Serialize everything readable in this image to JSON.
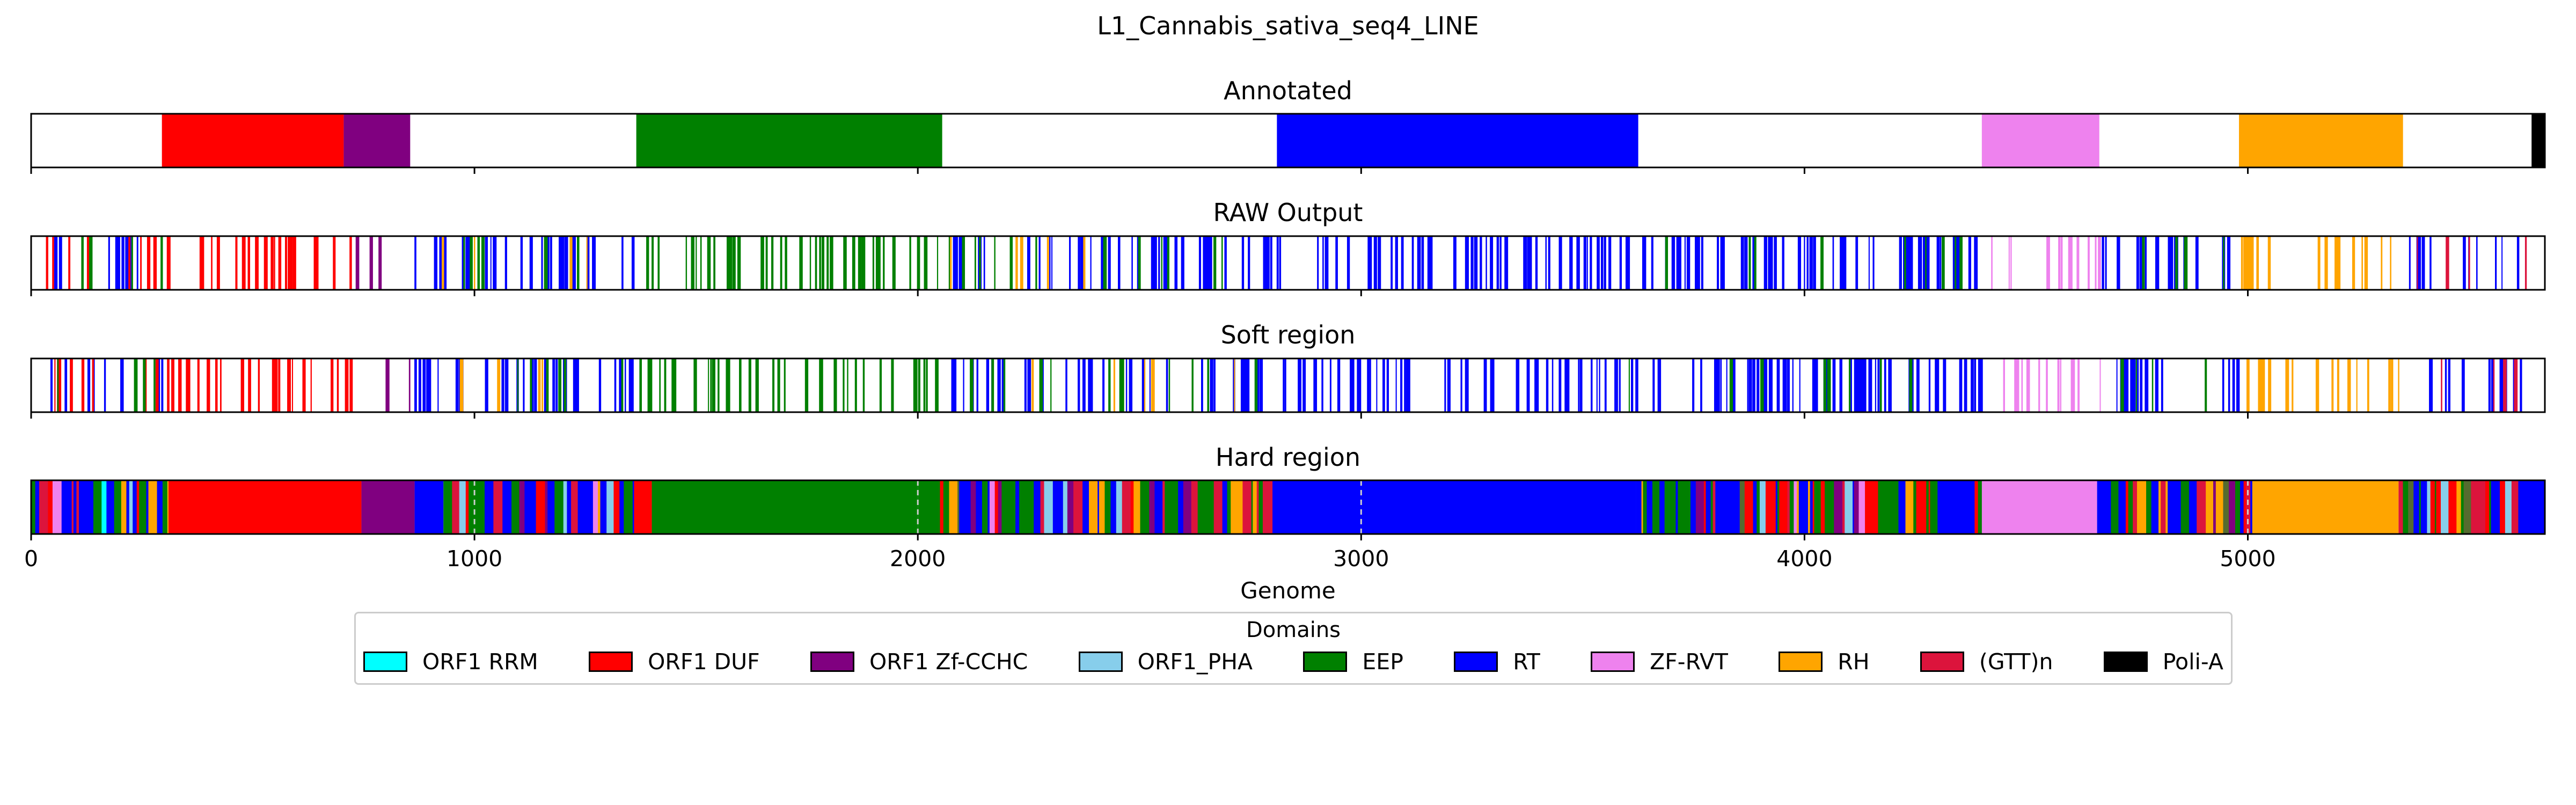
{
  "chart_data": {
    "type": "heatmap",
    "title": "L1_Cannabis_sativa_seq4_LINE",
    "xlabel": "Genome",
    "xlim": [
      0,
      5670
    ],
    "xticks": [
      0,
      1000,
      2000,
      3000,
      4000,
      5000
    ],
    "tick_labels": [
      "0",
      "1000",
      "2000",
      "3000",
      "4000",
      "5000"
    ],
    "legend": {
      "title": "Domains",
      "placement": "lower-center",
      "entries": [
        {
          "label": "ORF1 RRM",
          "color": "#00ffff"
        },
        {
          "label": "ORF1 DUF",
          "color": "#ff0000"
        },
        {
          "label": "ORF1 Zf-CCHC",
          "color": "#800080"
        },
        {
          "label": "ORF1_PHA",
          "color": "#87ceeb"
        },
        {
          "label": "EEP",
          "color": "#008000"
        },
        {
          "label": "RT",
          "color": "#0000ff"
        },
        {
          "label": "ZF-RVT",
          "color": "#ee82ee"
        },
        {
          "label": "RH",
          "color": "#ffa500"
        },
        {
          "label": "(GTT)n",
          "color": "#dc143c"
        },
        {
          "label": "Poli-A",
          "color": "#000000"
        }
      ]
    },
    "tracks": [
      {
        "name": "Annotated",
        "segments": [
          {
            "start": 295,
            "end": 705,
            "domain": "ORF1 DUF"
          },
          {
            "start": 705,
            "end": 855,
            "domain": "ORF1 Zf-CCHC"
          },
          {
            "start": 1365,
            "end": 2055,
            "domain": "EEP"
          },
          {
            "start": 2810,
            "end": 3625,
            "domain": "RT"
          },
          {
            "start": 4400,
            "end": 4665,
            "domain": "ZF-RVT"
          },
          {
            "start": 4980,
            "end": 5350,
            "domain": "RH"
          },
          {
            "start": 5640,
            "end": 5670,
            "domain": "Poli-A"
          }
        ]
      },
      {
        "name": "RAW Output",
        "pattern": "sparse",
        "regions": [
          {
            "start": 0,
            "end": 300,
            "domain": "RT",
            "density": 0.22
          },
          {
            "start": 0,
            "end": 300,
            "domain": "ORF1 DUF",
            "density": 0.18
          },
          {
            "start": 0,
            "end": 300,
            "domain": "EEP",
            "density": 0.1
          },
          {
            "start": 300,
            "end": 720,
            "domain": "ORF1 DUF",
            "density": 0.5
          },
          {
            "start": 720,
            "end": 860,
            "domain": "ORF1 Zf-CCHC",
            "density": 0.2
          },
          {
            "start": 860,
            "end": 1370,
            "domain": "RT",
            "density": 0.45
          },
          {
            "start": 860,
            "end": 1370,
            "domain": "EEP",
            "density": 0.08
          },
          {
            "start": 860,
            "end": 1370,
            "domain": "RH",
            "density": 0.06
          },
          {
            "start": 1370,
            "end": 2060,
            "domain": "EEP",
            "density": 0.4
          },
          {
            "start": 2060,
            "end": 2800,
            "domain": "RT",
            "density": 0.4
          },
          {
            "start": 2060,
            "end": 2800,
            "domain": "EEP",
            "density": 0.12
          },
          {
            "start": 2060,
            "end": 2800,
            "domain": "RH",
            "density": 0.05
          },
          {
            "start": 2800,
            "end": 4400,
            "domain": "RT",
            "density": 0.55
          },
          {
            "start": 3600,
            "end": 4400,
            "domain": "EEP",
            "density": 0.08
          },
          {
            "start": 4400,
            "end": 4670,
            "domain": "ZF-RVT",
            "density": 0.35
          },
          {
            "start": 4670,
            "end": 4980,
            "domain": "RT",
            "density": 0.45
          },
          {
            "start": 4670,
            "end": 4980,
            "domain": "EEP",
            "density": 0.1
          },
          {
            "start": 4980,
            "end": 5360,
            "domain": "RH",
            "density": 0.35
          },
          {
            "start": 5360,
            "end": 5650,
            "domain": "RT",
            "density": 0.3
          },
          {
            "start": 5360,
            "end": 5650,
            "domain": "(GTT)n",
            "density": 0.1
          }
        ]
      },
      {
        "name": "Soft region",
        "pattern": "sparse",
        "regions": [
          {
            "start": 0,
            "end": 300,
            "domain": "RT",
            "density": 0.22
          },
          {
            "start": 0,
            "end": 300,
            "domain": "ORF1 DUF",
            "density": 0.18
          },
          {
            "start": 0,
            "end": 300,
            "domain": "EEP",
            "density": 0.1
          },
          {
            "start": 300,
            "end": 720,
            "domain": "ORF1 DUF",
            "density": 0.5
          },
          {
            "start": 720,
            "end": 860,
            "domain": "ORF1 Zf-CCHC",
            "density": 0.2
          },
          {
            "start": 860,
            "end": 1370,
            "domain": "RT",
            "density": 0.45
          },
          {
            "start": 860,
            "end": 1370,
            "domain": "EEP",
            "density": 0.08
          },
          {
            "start": 860,
            "end": 1370,
            "domain": "RH",
            "density": 0.06
          },
          {
            "start": 1370,
            "end": 2060,
            "domain": "EEP",
            "density": 0.4
          },
          {
            "start": 2060,
            "end": 2800,
            "domain": "RT",
            "density": 0.4
          },
          {
            "start": 2060,
            "end": 2800,
            "domain": "EEP",
            "density": 0.12
          },
          {
            "start": 2060,
            "end": 2800,
            "domain": "RH",
            "density": 0.05
          },
          {
            "start": 2800,
            "end": 4400,
            "domain": "RT",
            "density": 0.55
          },
          {
            "start": 3600,
            "end": 4400,
            "domain": "EEP",
            "density": 0.08
          },
          {
            "start": 4400,
            "end": 4670,
            "domain": "ZF-RVT",
            "density": 0.35
          },
          {
            "start": 4670,
            "end": 4980,
            "domain": "RT",
            "density": 0.45
          },
          {
            "start": 4670,
            "end": 4980,
            "domain": "EEP",
            "density": 0.1
          },
          {
            "start": 4980,
            "end": 5360,
            "domain": "RH",
            "density": 0.35
          },
          {
            "start": 5360,
            "end": 5650,
            "domain": "RT",
            "density": 0.3
          },
          {
            "start": 5360,
            "end": 5650,
            "domain": "(GTT)n",
            "density": 0.1
          }
        ]
      },
      {
        "name": "Hard region",
        "pattern": "dense",
        "segments": [
          {
            "start": 0,
            "end": 310,
            "domain": "mixed"
          },
          {
            "start": 310,
            "end": 745,
            "domain": "ORF1 DUF"
          },
          {
            "start": 745,
            "end": 865,
            "domain": "ORF1 Zf-CCHC"
          },
          {
            "start": 865,
            "end": 930,
            "domain": "RT"
          },
          {
            "start": 930,
            "end": 1360,
            "domain": "mixed"
          },
          {
            "start": 1360,
            "end": 1400,
            "domain": "ORF1 DUF"
          },
          {
            "start": 1400,
            "end": 2000,
            "domain": "EEP"
          },
          {
            "start": 2000,
            "end": 2050,
            "domain": "EEP"
          },
          {
            "start": 2050,
            "end": 2800,
            "domain": "mixed"
          },
          {
            "start": 2800,
            "end": 3620,
            "domain": "RT"
          },
          {
            "start": 3620,
            "end": 4400,
            "domain": "mixed"
          },
          {
            "start": 4400,
            "end": 4660,
            "domain": "ZF-RVT"
          },
          {
            "start": 4660,
            "end": 5010,
            "domain": "mixed"
          },
          {
            "start": 5010,
            "end": 5340,
            "domain": "RH"
          },
          {
            "start": 5340,
            "end": 5610,
            "domain": "mixed"
          },
          {
            "start": 5610,
            "end": 5670,
            "domain": "RT"
          }
        ],
        "dashed_vlines": [
          1000,
          2000,
          3000,
          5000
        ]
      }
    ]
  }
}
